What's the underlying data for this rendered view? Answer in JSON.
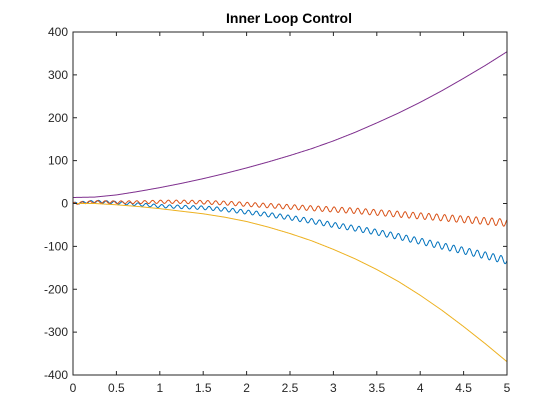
{
  "chart_data": {
    "type": "line",
    "title": "Inner Loop Control",
    "xlabel": "",
    "ylabel": "",
    "xlim": [
      0,
      5
    ],
    "ylim": [
      -400,
      400
    ],
    "x_ticks": [
      0,
      0.5,
      1,
      1.5,
      2,
      2.5,
      3,
      3.5,
      4,
      4.5,
      5
    ],
    "x_tick_labels": [
      "0",
      "0.5",
      "1",
      "1.5",
      "2",
      "2.5",
      "3",
      "3.5",
      "4",
      "4.5",
      "5"
    ],
    "y_ticks": [
      -400,
      -300,
      -200,
      -100,
      0,
      100,
      200,
      300,
      400
    ],
    "y_tick_labels": [
      "-400",
      "-300",
      "-200",
      "-100",
      "0",
      "100",
      "200",
      "300",
      "400"
    ],
    "grid": false,
    "legend": "none",
    "series": [
      {
        "color": "#0072BD",
        "x": [
          0,
          0.25,
          0.5,
          0.75,
          1,
          1.25,
          1.5,
          1.75,
          2,
          2.25,
          2.5,
          2.75,
          3,
          3.25,
          3.5,
          3.75,
          4,
          4.25,
          4.5,
          4.75,
          5
        ],
        "y": [
          0,
          5,
          2,
          -2,
          -6,
          -8,
          -10,
          -14,
          -20,
          -26,
          -33,
          -41,
          -50,
          -58,
          -67,
          -77,
          -88,
          -99,
          -110,
          -121,
          -133
        ],
        "oscillation": true
      },
      {
        "color": "#D95319",
        "x": [
          0,
          0.25,
          0.5,
          0.75,
          1,
          1.25,
          1.5,
          1.75,
          2,
          2.25,
          2.5,
          2.75,
          3,
          3.25,
          3.5,
          3.75,
          4,
          4.25,
          4.5,
          4.75,
          5
        ],
        "y": [
          0,
          4,
          3,
          3,
          4,
          4,
          3,
          1,
          -2,
          -5,
          -8,
          -11,
          -14,
          -17,
          -21,
          -25,
          -29,
          -33,
          -37,
          -41,
          -45
        ],
        "oscillation": true
      },
      {
        "color": "#EDB120",
        "x": [
          0,
          0.25,
          0.5,
          0.75,
          1,
          1.25,
          1.5,
          1.75,
          2,
          2.25,
          2.5,
          2.75,
          3,
          3.25,
          3.5,
          3.75,
          4,
          4.25,
          4.5,
          4.75,
          5
        ],
        "y": [
          0,
          0,
          -3,
          -7,
          -12,
          -18,
          -24,
          -32,
          -42,
          -55,
          -70,
          -87,
          -107,
          -129,
          -154,
          -182,
          -214,
          -249,
          -287,
          -327,
          -369
        ],
        "oscillation": false
      },
      {
        "color": "#7E2F8E",
        "x": [
          0,
          0.25,
          0.5,
          0.75,
          1,
          1.25,
          1.5,
          1.75,
          2,
          2.25,
          2.5,
          2.75,
          3,
          3.25,
          3.5,
          3.75,
          4,
          4.25,
          4.5,
          4.75,
          5
        ],
        "y": [
          14,
          15,
          20,
          28,
          37,
          47,
          58,
          70,
          83,
          97,
          112,
          128,
          146,
          166,
          188,
          211,
          236,
          263,
          292,
          322,
          354
        ],
        "oscillation": false
      }
    ]
  }
}
